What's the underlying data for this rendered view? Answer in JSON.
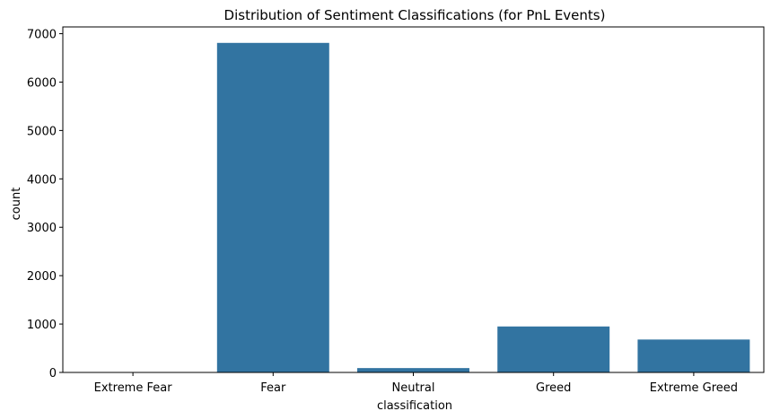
{
  "chart_data": {
    "type": "bar",
    "title": "Distribution of Sentiment Classifications (for PnL Events)",
    "xlabel": "classification",
    "ylabel": "count",
    "categories": [
      "Extreme Fear",
      "Fear",
      "Neutral",
      "Greed",
      "Extreme Greed"
    ],
    "values": [
      0,
      6810,
      90,
      950,
      680
    ],
    "ylim": [
      0,
      7140
    ],
    "yticks": [
      0,
      1000,
      2000,
      3000,
      4000,
      5000,
      6000,
      7000
    ],
    "bar_color": "#3274a1",
    "grid": false,
    "legend": "none"
  }
}
